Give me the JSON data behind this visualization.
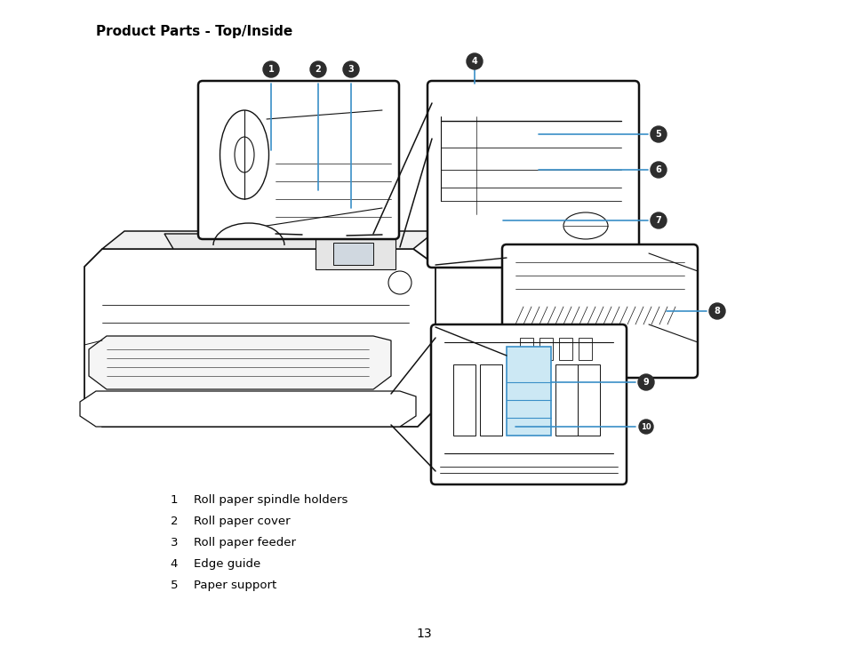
{
  "title": "Product Parts - Top/Inside",
  "title_fontsize": 11,
  "title_fontweight": "bold",
  "background_color": "#ffffff",
  "list_items": [
    {
      "num": "1",
      "text": "Roll paper spindle holders"
    },
    {
      "num": "2",
      "text": "Roll paper cover"
    },
    {
      "num": "3",
      "text": "Roll paper feeder"
    },
    {
      "num": "4",
      "text": "Edge guide"
    },
    {
      "num": "5",
      "text": "Paper support"
    }
  ],
  "page_number": "13",
  "callout_dark": "#2d2d2d",
  "callout_text_color": "#ffffff",
  "callout_fontsize": 7,
  "blue_color": "#3a8fc7",
  "black": "#111111",
  "figsize": [
    9.54,
    7.38
  ],
  "dpi": 100
}
